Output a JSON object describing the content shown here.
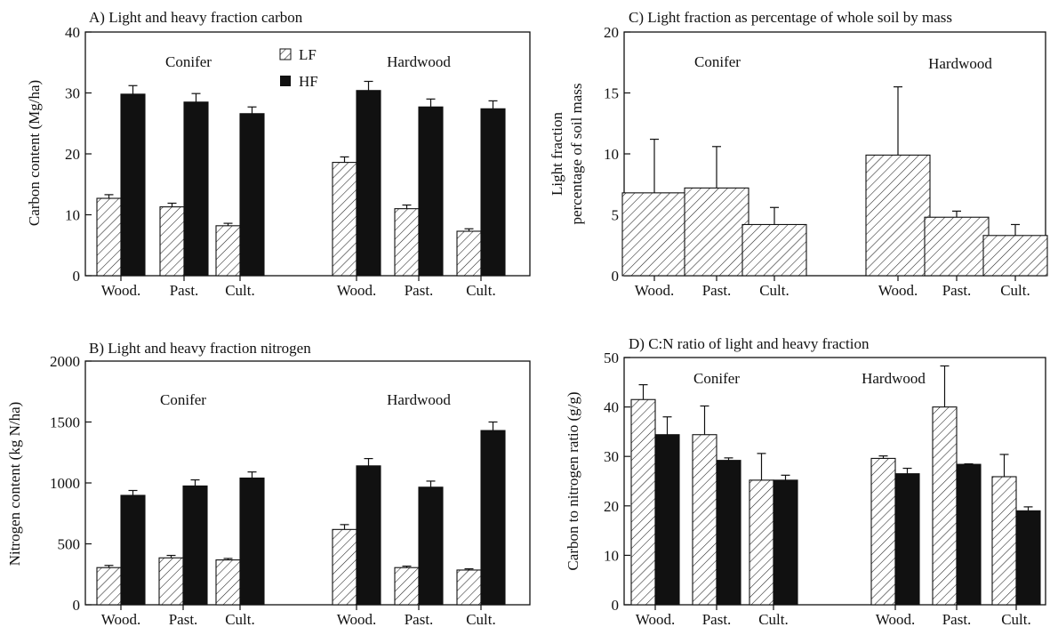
{
  "chart_data": [
    {
      "id": "A",
      "type": "bar",
      "title": "A) Light and heavy fraction carbon",
      "ylabel": "Carbon content (Mg/ha)",
      "ylabel_lines": [
        "Carbon content (Mg/ha)"
      ],
      "ylim": [
        0,
        40
      ],
      "yticks": [
        "0",
        "10",
        "20",
        "30",
        "40"
      ],
      "categories": [
        "Wood.",
        "Past.",
        "Cult.",
        "Wood.",
        "Past.",
        "Cult."
      ],
      "groups": [
        "Conifer",
        "Hardwood"
      ],
      "legend": [
        "LF",
        "HF"
      ],
      "series": [
        {
          "name": "LF",
          "style": "hatched",
          "values": [
            12.7,
            11.3,
            8.2,
            18.6,
            11.0,
            7.3
          ],
          "errors": [
            0.6,
            0.6,
            0.4,
            0.9,
            0.6,
            0.4
          ]
        },
        {
          "name": "HF",
          "style": "solid",
          "values": [
            29.8,
            28.5,
            26.6,
            30.4,
            27.7,
            27.4
          ],
          "errors": [
            1.4,
            1.4,
            1.1,
            1.5,
            1.3,
            1.3
          ]
        }
      ]
    },
    {
      "id": "B",
      "type": "bar",
      "title": "B) Light and heavy fraction nitrogen",
      "ylabel": "Nitrogen content (kg N/ha)",
      "ylabel_lines": [
        "Nitrogen content (kg N/ha)"
      ],
      "ylim": [
        0,
        2000
      ],
      "yticks": [
        "0",
        "500",
        "1000",
        "1500",
        "2000"
      ],
      "categories": [
        "Wood.",
        "Past.",
        "Cult.",
        "Wood.",
        "Past.",
        "Cult."
      ],
      "groups": [
        "Conifer",
        "Hardwood"
      ],
      "series": [
        {
          "name": "LF",
          "style": "hatched",
          "values": [
            305,
            385,
            368,
            618,
            305,
            285
          ],
          "errors": [
            18,
            20,
            12,
            40,
            12,
            10
          ]
        },
        {
          "name": "HF",
          "style": "solid",
          "values": [
            898,
            975,
            1040,
            1140,
            965,
            1430
          ],
          "errors": [
            40,
            50,
            50,
            60,
            50,
            70
          ]
        }
      ]
    },
    {
      "id": "C",
      "type": "bar",
      "title": "C) Light fraction as percentage of whole soil by mass",
      "ylabel": "Light fraction percentage of soil mass",
      "ylabel_lines": [
        "Light fraction",
        "percentage of soil mass"
      ],
      "ylim": [
        0,
        20
      ],
      "yticks": [
        "0",
        "5",
        "10",
        "15",
        "20"
      ],
      "categories": [
        "Wood.",
        "Past.",
        "Cult.",
        "Wood.",
        "Past.",
        "Cult."
      ],
      "groups": [
        "Conifer",
        "Hardwood"
      ],
      "series": [
        {
          "name": "LF",
          "style": "hatched",
          "values": [
            6.8,
            7.2,
            4.2,
            9.9,
            4.8,
            3.3
          ],
          "errors": [
            4.4,
            3.4,
            1.4,
            5.6,
            0.5,
            0.9
          ]
        }
      ]
    },
    {
      "id": "D",
      "type": "bar",
      "title": "D) C:N ratio of light and heavy fraction",
      "ylabel": "Carbon to nitrogen ratio (g/g)",
      "ylabel_lines": [
        "Carbon to nitrogen ratio (g/g)"
      ],
      "ylim": [
        0,
        50
      ],
      "yticks": [
        "0",
        "10",
        "20",
        "30",
        "40",
        "50"
      ],
      "categories": [
        "Wood.",
        "Past.",
        "Cult.",
        "Wood.",
        "Past.",
        "Cult."
      ],
      "groups": [
        "Conifer",
        "Hardwood"
      ],
      "series": [
        {
          "name": "LF",
          "style": "hatched",
          "values": [
            41.5,
            34.4,
            25.2,
            29.6,
            40.0,
            25.9
          ],
          "errors": [
            3.0,
            5.8,
            5.4,
            0.5,
            8.3,
            4.5
          ]
        },
        {
          "name": "HF",
          "style": "solid",
          "values": [
            34.4,
            29.2,
            25.2,
            26.5,
            28.4,
            19.0
          ],
          "errors": [
            3.6,
            0.5,
            1.0,
            1.1,
            0.1,
            0.8
          ]
        }
      ]
    }
  ]
}
